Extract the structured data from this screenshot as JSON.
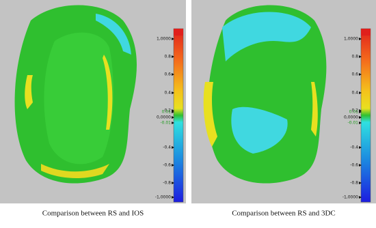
{
  "panels": [
    {
      "caption": "Comparison between RS and IOS",
      "scale_labels": [
        "1,0000",
        "0.8",
        "0.6",
        "0.4",
        "0.2",
        "0.01",
        "0,0000",
        "-0.01",
        "-0.4",
        "-0.6",
        "-0.8",
        "-1,0000"
      ]
    },
    {
      "caption": "Comparison between RS and 3DC",
      "scale_labels": [
        "1,0000",
        "0.8",
        "0.6",
        "0.4",
        "0.2",
        "0.01",
        "0,0000",
        "-0.01",
        "-0.4",
        "-0.6",
        "-0.8",
        "-1,0000"
      ]
    }
  ]
}
